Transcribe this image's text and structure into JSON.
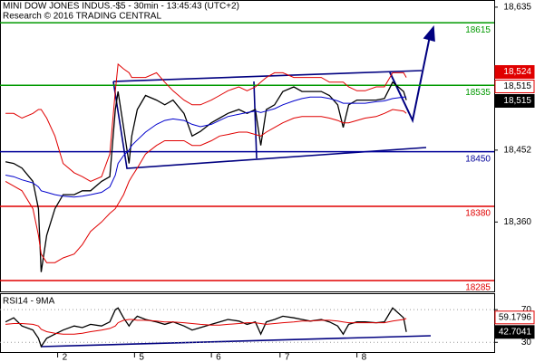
{
  "chart_data": [
    {
      "type": "line",
      "title": "MINI DOW JONES INDUS.-$5 - 30min - 13:45:43 (UTC+2)",
      "subtitle": "Research © 2016 TRADING CENTRAL",
      "x": [
        2,
        5,
        8,
        12,
        14,
        15,
        17,
        20,
        23,
        27,
        30,
        33,
        37,
        40,
        42,
        43,
        45,
        47,
        48,
        50,
        53,
        57,
        60,
        63,
        67,
        70,
        73,
        77,
        80,
        83,
        87,
        90,
        93,
        95,
        97,
        100,
        103,
        107,
        110,
        113,
        117,
        120,
        123,
        125,
        127,
        130,
        133,
        137,
        140,
        143,
        147,
        148
      ],
      "xlim": [
        0,
        180
      ],
      "ylim": [
        18270,
        18643
      ],
      "yticks": [
        {
          "value": 18360,
          "label": "18,360"
        },
        {
          "value": 18452,
          "label": "18,452"
        },
        {
          "value": 18635,
          "label": "18,635"
        }
      ],
      "series": [
        {
          "color": "#000000",
          "values": [
            18437,
            18435,
            18429,
            18412,
            18377,
            18296,
            18343,
            18377,
            18395,
            18395,
            18400,
            18400,
            18412,
            18418,
            18504,
            18527,
            18481,
            18435,
            18470,
            18504,
            18522,
            18516,
            18510,
            18516,
            18499,
            18470,
            18476,
            18487,
            18493,
            18499,
            18504,
            18499,
            18504,
            18458,
            18504,
            18510,
            18527,
            18533,
            18527,
            18527,
            18527,
            18522,
            18510,
            18481,
            18510,
            18516,
            18516,
            18516,
            18518,
            18539,
            18527,
            18516
          ]
        },
        {
          "color": "#e00000",
          "values": [
            18499,
            18499,
            18493,
            18499,
            18504,
            18504,
            18493,
            18470,
            18435,
            18423,
            18418,
            18412,
            18418,
            18447,
            18528,
            18562,
            18556,
            18551,
            18545,
            18545,
            18545,
            18551,
            18539,
            18528,
            18516,
            18510,
            18510,
            18516,
            18522,
            18528,
            18533,
            18528,
            18533,
            18539,
            18545,
            18551,
            18551,
            18545,
            18545,
            18545,
            18545,
            18539,
            18539,
            18539,
            18533,
            18528,
            18528,
            18533,
            18533,
            18551,
            18551,
            18545
          ]
        },
        {
          "color": "#e00000",
          "values": [
            18412,
            18406,
            18400,
            18377,
            18343,
            18319,
            18308,
            18308,
            18314,
            18319,
            18331,
            18348,
            18360,
            18371,
            18377,
            18383,
            18395,
            18412,
            18418,
            18429,
            18447,
            18458,
            18464,
            18464,
            18464,
            18458,
            18458,
            18464,
            18470,
            18472,
            18475,
            18475,
            18472,
            18470,
            18475,
            18481,
            18487,
            18493,
            18495,
            18495,
            18495,
            18493,
            18490,
            18487,
            18487,
            18490,
            18493,
            18495,
            18499,
            18504,
            18502,
            18499
          ]
        },
        {
          "color": "#0000cc",
          "values": [
            18420,
            18418,
            18414,
            18410,
            18405,
            18400,
            18398,
            18395,
            18393,
            18392,
            18393,
            18395,
            18398,
            18405,
            18420,
            18435,
            18445,
            18452,
            18458,
            18465,
            18475,
            18485,
            18490,
            18492,
            18490,
            18485,
            18482,
            18485,
            18490,
            18495,
            18498,
            18500,
            18502,
            18500,
            18502,
            18505,
            18510,
            18515,
            18518,
            18520,
            18520,
            18518,
            18515,
            18512,
            18512,
            18512,
            18512,
            18514,
            18515,
            18518,
            18520,
            18520
          ]
        }
      ],
      "levels": [
        {
          "value": 18615,
          "color": "#009900"
        },
        {
          "value": 18535,
          "color": "#009900"
        },
        {
          "value": 18450,
          "color": "#000099"
        },
        {
          "value": 18380,
          "color": "#e00000"
        },
        {
          "value": 18285,
          "color": "#e00000"
        }
      ],
      "markers": [
        {
          "value": 18524,
          "label": "18,524",
          "color": "#e00000"
        },
        {
          "value": 18515,
          "label": "18,515",
          "color": "#ffffff"
        },
        {
          "value": 18515,
          "label": "18,515",
          "color": "#000000"
        }
      ]
    },
    {
      "type": "line",
      "title": "RSI14 - 9MA",
      "x": [
        2,
        5,
        8,
        12,
        14,
        15,
        17,
        20,
        23,
        27,
        30,
        33,
        37,
        40,
        42,
        43,
        45,
        47,
        48,
        50,
        53,
        57,
        60,
        63,
        67,
        70,
        73,
        77,
        80,
        83,
        87,
        90,
        93,
        95,
        97,
        100,
        103,
        107,
        110,
        113,
        117,
        120,
        123,
        125,
        127,
        130,
        133,
        137,
        140,
        143,
        147,
        148
      ],
      "xlim": [
        0,
        180
      ],
      "xticks": [
        {
          "value": 21,
          "label": "2"
        },
        {
          "value": 49,
          "label": "5"
        },
        {
          "value": 77,
          "label": "6"
        },
        {
          "value": 102,
          "label": "7"
        },
        {
          "value": 130,
          "label": "8"
        }
      ],
      "ylim": [
        17,
        89
      ],
      "yticks": [
        30,
        70
      ],
      "series": [
        {
          "color": "#000000",
          "values": [
            55,
            60,
            50,
            45,
            35,
            25,
            35,
            40,
            45,
            50,
            48,
            52,
            50,
            55,
            70,
            72,
            60,
            50,
            55,
            62,
            58,
            55,
            52,
            55,
            50,
            45,
            48,
            52,
            55,
            58,
            56,
            52,
            55,
            40,
            55,
            58,
            62,
            60,
            58,
            56,
            58,
            55,
            50,
            40,
            52,
            55,
            55,
            54,
            55,
            72,
            60,
            42.7041
          ]
        },
        {
          "color": "#e00000",
          "values": [
            52,
            53,
            53,
            52,
            50,
            46,
            43,
            41,
            40,
            40,
            41,
            43,
            45,
            47,
            50,
            54,
            57,
            58,
            58,
            57,
            57,
            56,
            55,
            55,
            54,
            53,
            52,
            51,
            51,
            52,
            53,
            54,
            54,
            53,
            52,
            53,
            54,
            55,
            56,
            56,
            57,
            57,
            56,
            55,
            54,
            54,
            54,
            54,
            54,
            56,
            58,
            59.1796
          ]
        }
      ],
      "markers": [
        {
          "value": 59.1796,
          "color": "#ffffff"
        },
        {
          "value": 42.7041,
          "color": "#000000"
        }
      ]
    }
  ]
}
